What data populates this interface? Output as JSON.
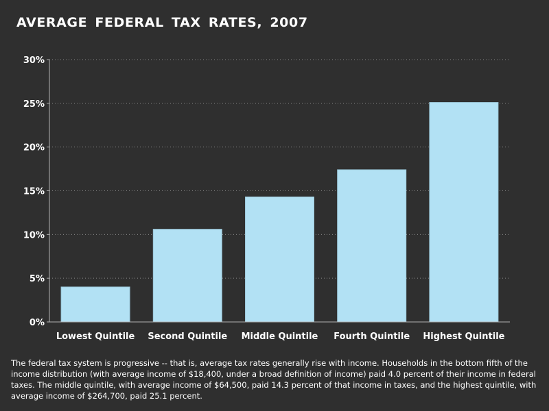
{
  "chart_data": {
    "type": "bar",
    "title": "AVERAGE  FEDERAL  TAX  RATES,  2007",
    "xlabel": "",
    "ylabel": "",
    "categories": [
      "Lowest Quintile",
      "Second Quintile",
      "Middle Quintile",
      "Fourth Quintile",
      "Highest Quintile"
    ],
    "values": [
      4.0,
      10.6,
      14.3,
      17.4,
      25.1
    ],
    "ylim": [
      0,
      30
    ],
    "yticks": [
      0,
      5,
      10,
      15,
      20,
      25,
      30
    ],
    "ytick_labels": [
      "0%",
      "5%",
      "10%",
      "15%",
      "20%",
      "25%",
      "30%"
    ],
    "grid": true,
    "colors": {
      "bar_fill": "#b2e1f4",
      "bar_stroke": "#9cc8da",
      "background": "#2f2f2f",
      "grid": "#8a8a8a",
      "axis": "#b0b0b0",
      "text": "#ffffff"
    }
  },
  "caption": "The federal tax system is progressive -- that is, average tax rates generally rise with income.  Households in the bottom fifth of the income distribution (with average income of $18,400, under a broad definition of income) paid 4.0 percent of their income in federal taxes.  The middle quintile, with average income of $64,500, paid 14.3 percent of that income in taxes, and the highest quintile, with average income of $264,700, paid 25.1 percent."
}
